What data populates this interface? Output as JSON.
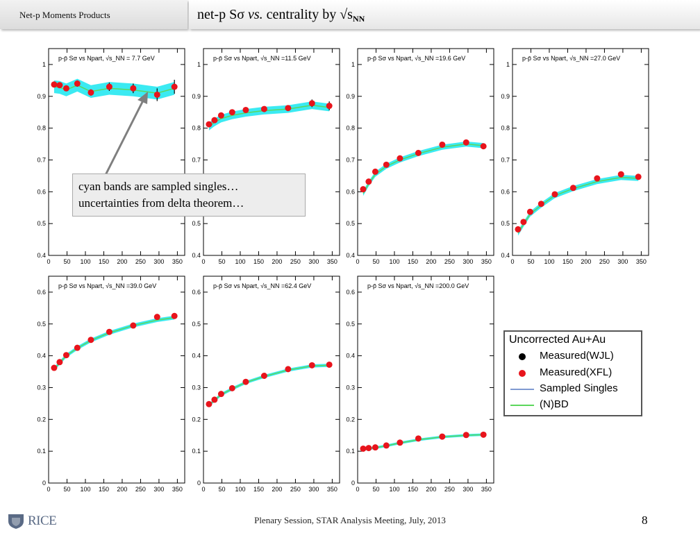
{
  "header": {
    "section_label": "Net-p Moments Products",
    "title_main": "net-p Sσ ",
    "title_italic": "vs.",
    "title_rest": " centrality by √s",
    "title_sub": "NN"
  },
  "callout": {
    "line1": "cyan bands are sampled singles…",
    "line2": "uncertainties from delta theorem…"
  },
  "legend": {
    "title": "Uncorrected Au+Au",
    "items": [
      {
        "label": "Measured(WJL)",
        "kind": "dot",
        "color": "#000000"
      },
      {
        "label": "Measured(XFL)",
        "kind": "dot",
        "color": "#e8141c"
      },
      {
        "label": "Sampled Singles",
        "kind": "line",
        "color": "#7f9ad1"
      },
      {
        "label": "(N)BD",
        "kind": "line",
        "color": "#5cd65c"
      }
    ]
  },
  "footer": {
    "text": "Plenary Session, STAR Analysis Meeting, July, 2013",
    "page_number": "8",
    "logo_text": "RICE"
  },
  "colors": {
    "measured_xfl": "#e8141c",
    "measured_wjl": "#000000",
    "band": "#19e6f0",
    "nbd": "#5cd65c"
  },
  "chart_data": [
    {
      "type": "scatter",
      "title": "p-p̄ Sσ vs Npart, √s_NN = 7.7 GeV",
      "x": [
        15,
        30,
        48,
        78,
        115,
        165,
        230,
        295,
        342
      ],
      "y": [
        0.937,
        0.935,
        0.925,
        0.94,
        0.912,
        0.93,
        0.925,
        0.905,
        0.93
      ],
      "yerr": [
        0.008,
        0.008,
        0.009,
        0.01,
        0.01,
        0.013,
        0.015,
        0.02,
        0.022
      ],
      "band": [
        0.93,
        0.928,
        0.92,
        0.935,
        0.915,
        0.925,
        0.92,
        0.91,
        0.925
      ],
      "band_halfwidth": 0.02,
      "xlim": [
        0,
        370
      ],
      "ylim": [
        0.4,
        1.05
      ],
      "yticks": [
        0.4,
        0.5,
        0.6,
        0.7,
        0.8,
        0.9,
        1
      ],
      "xticks": [
        0,
        50,
        100,
        150,
        200,
        250,
        300,
        350
      ]
    },
    {
      "type": "scatter",
      "title": "p-p̄ Sσ vs Npart, √s_NN =11.5 GeV",
      "x": [
        15,
        30,
        48,
        78,
        115,
        165,
        230,
        295,
        342
      ],
      "y": [
        0.812,
        0.825,
        0.84,
        0.85,
        0.857,
        0.86,
        0.863,
        0.878,
        0.87
      ],
      "yerr": [
        0.006,
        0.006,
        0.006,
        0.007,
        0.007,
        0.008,
        0.009,
        0.012,
        0.014
      ],
      "band": [
        0.805,
        0.818,
        0.83,
        0.84,
        0.848,
        0.855,
        0.86,
        0.872,
        0.865
      ],
      "band_halfwidth": 0.012,
      "xlim": [
        0,
        370
      ],
      "ylim": [
        0.4,
        1.05
      ],
      "yticks": [
        0.4,
        0.5,
        0.6,
        0.7,
        0.8,
        0.9,
        1
      ],
      "xticks": [
        0,
        50,
        100,
        150,
        200,
        250,
        300,
        350
      ]
    },
    {
      "type": "scatter",
      "title": "p-p̄ Sσ vs Npart, √s_NN =19.6 GeV",
      "x": [
        15,
        30,
        48,
        78,
        115,
        165,
        230,
        295,
        342
      ],
      "y": [
        0.608,
        0.632,
        0.663,
        0.685,
        0.705,
        0.722,
        0.748,
        0.755,
        0.743
      ],
      "yerr": [
        0.004,
        0.004,
        0.004,
        0.004,
        0.004,
        0.005,
        0.005,
        0.006,
        0.006
      ],
      "band": [
        0.595,
        0.625,
        0.655,
        0.68,
        0.7,
        0.72,
        0.74,
        0.75,
        0.745
      ],
      "band_halfwidth": 0.008,
      "xlim": [
        0,
        370
      ],
      "ylim": [
        0.4,
        1.05
      ],
      "yticks": [
        0.4,
        0.5,
        0.6,
        0.7,
        0.8,
        0.9,
        1
      ],
      "xticks": [
        0,
        50,
        100,
        150,
        200,
        250,
        300,
        350
      ]
    },
    {
      "type": "scatter",
      "title": "p-p̄ Sσ vs Npart, √s_NN =27.0 GeV",
      "x": [
        15,
        30,
        48,
        78,
        115,
        165,
        230,
        295,
        342
      ],
      "y": [
        0.482,
        0.505,
        0.537,
        0.562,
        0.592,
        0.612,
        0.642,
        0.655,
        0.647
      ],
      "yerr": [
        0.004,
        0.004,
        0.004,
        0.004,
        0.004,
        0.004,
        0.005,
        0.005,
        0.005
      ],
      "band": [
        0.47,
        0.498,
        0.53,
        0.558,
        0.588,
        0.61,
        0.632,
        0.645,
        0.642
      ],
      "band_halfwidth": 0.008,
      "xlim": [
        0,
        370
      ],
      "ylim": [
        0.4,
        1.05
      ],
      "yticks": [
        0.4,
        0.5,
        0.6,
        0.7,
        0.8,
        0.9,
        1
      ],
      "xticks": [
        0,
        50,
        100,
        150,
        200,
        250,
        300,
        350
      ]
    },
    {
      "type": "scatter",
      "title": "p-p̄ Sσ vs Npart, √s_NN =39.0 GeV",
      "x": [
        15,
        30,
        48,
        78,
        115,
        165,
        230,
        295,
        342
      ],
      "y": [
        0.362,
        0.38,
        0.402,
        0.425,
        0.45,
        0.475,
        0.495,
        0.522,
        0.525
      ],
      "yerr": [
        0.003,
        0.003,
        0.003,
        0.003,
        0.003,
        0.003,
        0.004,
        0.004,
        0.004
      ],
      "band": [
        0.358,
        0.378,
        0.4,
        0.424,
        0.448,
        0.472,
        0.495,
        0.512,
        0.52
      ],
      "band_halfwidth": 0.006,
      "xlim": [
        0,
        370
      ],
      "ylim": [
        0,
        0.65
      ],
      "yticks": [
        0,
        0.1,
        0.2,
        0.3,
        0.4,
        0.5,
        0.6
      ],
      "xticks": [
        0,
        50,
        100,
        150,
        200,
        250,
        300,
        350
      ]
    },
    {
      "type": "scatter",
      "title": "p-p̄ Sσ vs Npart, √s_NN =62.4 GeV",
      "x": [
        15,
        30,
        48,
        78,
        115,
        165,
        230,
        295,
        342
      ],
      "y": [
        0.248,
        0.262,
        0.28,
        0.298,
        0.318,
        0.337,
        0.358,
        0.37,
        0.372
      ],
      "yerr": [
        0.003,
        0.003,
        0.003,
        0.003,
        0.003,
        0.003,
        0.003,
        0.003,
        0.003
      ],
      "band": [
        0.245,
        0.26,
        0.278,
        0.296,
        0.316,
        0.335,
        0.355,
        0.368,
        0.37
      ],
      "band_halfwidth": 0.005,
      "xlim": [
        0,
        370
      ],
      "ylim": [
        0,
        0.65
      ],
      "yticks": [
        0,
        0.1,
        0.2,
        0.3,
        0.4,
        0.5,
        0.6
      ],
      "xticks": [
        0,
        50,
        100,
        150,
        200,
        250,
        300,
        350
      ]
    },
    {
      "type": "scatter",
      "title": "p-p̄ Sσ vs Npart, √s_NN =200.0 GeV",
      "x": [
        15,
        30,
        48,
        78,
        115,
        165,
        230,
        295,
        342
      ],
      "y": [
        0.108,
        0.11,
        0.112,
        0.118,
        0.127,
        0.14,
        0.146,
        0.151,
        0.152
      ],
      "yerr": [
        0.002,
        0.002,
        0.002,
        0.002,
        0.002,
        0.003,
        0.003,
        0.003,
        0.003
      ],
      "band": [
        0.106,
        0.108,
        0.111,
        0.117,
        0.126,
        0.136,
        0.145,
        0.15,
        0.152
      ],
      "band_halfwidth": 0.004,
      "xlim": [
        0,
        370
      ],
      "ylim": [
        0,
        0.65
      ],
      "yticks": [
        0,
        0.1,
        0.2,
        0.3,
        0.4,
        0.5,
        0.6
      ],
      "xticks": [
        0,
        50,
        100,
        150,
        200,
        250,
        300,
        350
      ]
    }
  ]
}
